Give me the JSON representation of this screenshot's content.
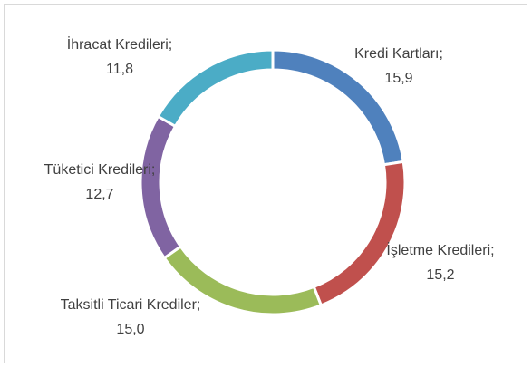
{
  "chart_data": {
    "type": "donut",
    "categories": [
      "Kredi Kartları;",
      "İşletme Kredileri;",
      "Taksitli Ticari Krediler;",
      "Tüketici Kredileri;",
      "İhracat Kredileri;"
    ],
    "values": [
      15.9,
      15.2,
      15.0,
      12.7,
      11.8
    ],
    "value_labels": [
      "15,9",
      "15,2",
      "15,0",
      "12,7",
      "11,8"
    ],
    "colors": [
      "#4f81bd",
      "#c0504d",
      "#9bbb59",
      "#8064a2",
      "#4bacc6"
    ]
  }
}
